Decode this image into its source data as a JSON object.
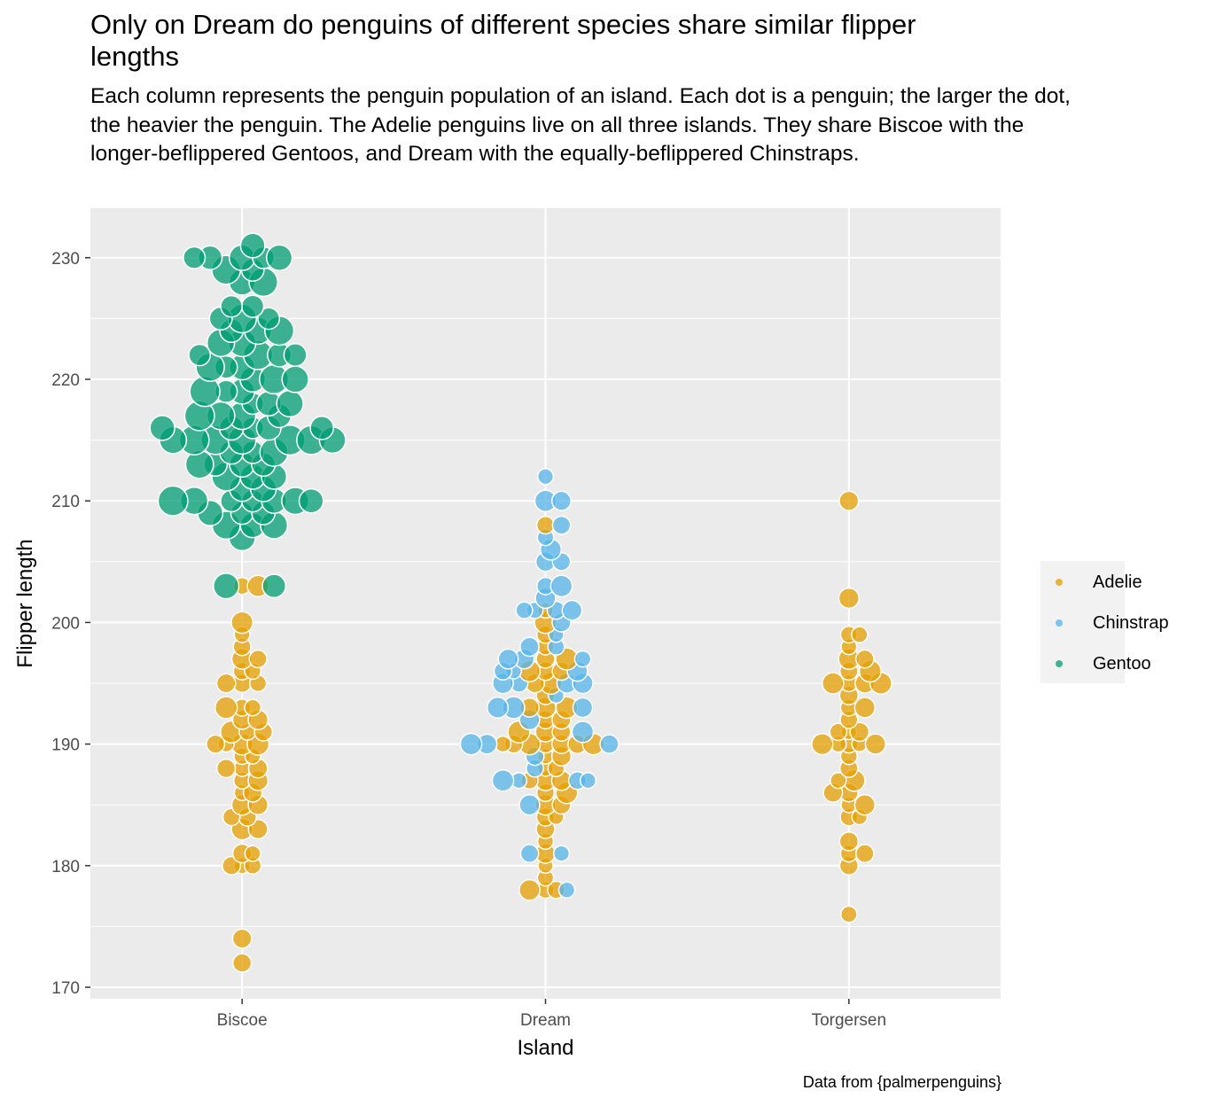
{
  "chart_data": {
    "type": "scatter",
    "title": "Only on Dream do penguins of different species share similar flipper lengths",
    "subtitle": "Each column represents the penguin population of an island. Each dot is a penguin; the larger the dot, the heavier the penguin. The Adelie penguins live on all three islands. They share Biscoe with the longer-beflippered Gentoos, and Dream with the equally-beflippered Chinstraps.",
    "xlabel": "Island",
    "ylabel": "Flipper length",
    "caption": "Data from {palmerpenguins}",
    "categories": [
      "Biscoe",
      "Dream",
      "Torgersen"
    ],
    "ylim": [
      169,
      234
    ],
    "yticks": [
      170,
      180,
      190,
      200,
      210,
      220,
      230
    ],
    "grid": true,
    "legend_position": "right",
    "series": [
      {
        "name": "Adelie",
        "color": "#E69F00",
        "points": [
          {
            "x": "Biscoe",
            "values": [
              172,
              174,
              180,
              180,
              180,
              181,
              181,
              183,
              183,
              184,
              184,
              185,
              185,
              186,
              186,
              187,
              187,
              188,
              188,
              188,
              189,
              189,
              190,
              190,
              190,
              190,
              191,
              191,
              191,
              192,
              192,
              193,
              193,
              193,
              195,
              195,
              195,
              196,
              196,
              197,
              197,
              198,
              199,
              200,
              203,
              203
            ]
          },
          {
            "x": "Dream",
            "values": [
              178,
              178,
              178,
              179,
              180,
              181,
              182,
              183,
              184,
              184,
              185,
              185,
              186,
              186,
              187,
              187,
              187,
              188,
              188,
              189,
              189,
              190,
              190,
              190,
              190,
              190,
              190,
              190,
              191,
              191,
              191,
              192,
              192,
              193,
              193,
              193,
              194,
              195,
              195,
              196,
              196,
              196,
              197,
              197,
              198,
              199,
              200,
              201,
              208
            ]
          },
          {
            "x": "Torgersen",
            "values": [
              176,
              180,
              181,
              181,
              182,
              184,
              184,
              185,
              185,
              186,
              186,
              187,
              187,
              188,
              189,
              190,
              190,
              190,
              190,
              190,
              191,
              191,
              191,
              192,
              193,
              193,
              194,
              195,
              195,
              195,
              195,
              196,
              196,
              197,
              197,
              198,
              199,
              199,
              202,
              210
            ]
          }
        ]
      },
      {
        "name": "Chinstrap",
        "color": "#56B4E9",
        "points": [
          {
            "x": "Dream",
            "values": [
              178,
              181,
              181,
              185,
              187,
              187,
              187,
              187,
              188,
              189,
              190,
              190,
              190,
              191,
              192,
              193,
              193,
              193,
              194,
              195,
              195,
              195,
              195,
              196,
              196,
              196,
              197,
              197,
              197,
              198,
              198,
              199,
              200,
              201,
              201,
              201,
              201,
              202,
              203,
              203,
              205,
              205,
              206,
              207,
              208,
              210,
              210,
              212
            ]
          }
        ]
      },
      {
        "name": "Gentoo",
        "color": "#009E73",
        "points": [
          {
            "x": "Biscoe",
            "values": [
              203,
              203,
              207,
              208,
              208,
              208,
              209,
              209,
              209,
              210,
              210,
              210,
              210,
              210,
              210,
              210,
              211,
              211,
              212,
              212,
              212,
              213,
              213,
              213,
              213,
              214,
              214,
              214,
              215,
              215,
              215,
              215,
              215,
              215,
              215,
              216,
              216,
              216,
              216,
              216,
              217,
              217,
              217,
              217,
              218,
              218,
              218,
              219,
              219,
              219,
              220,
              220,
              220,
              221,
              221,
              221,
              222,
              222,
              222,
              222,
              223,
              223,
              224,
              224,
              224,
              225,
              225,
              225,
              226,
              226,
              228,
              228,
              229,
              229,
              230,
              230,
              230,
              230,
              230,
              231
            ]
          }
        ]
      }
    ]
  },
  "legend": {
    "items": [
      {
        "label": "Adelie",
        "color": "#E69F00"
      },
      {
        "label": "Chinstrap",
        "color": "#56B4E9"
      },
      {
        "label": "Gentoo",
        "color": "#009E73"
      }
    ]
  }
}
